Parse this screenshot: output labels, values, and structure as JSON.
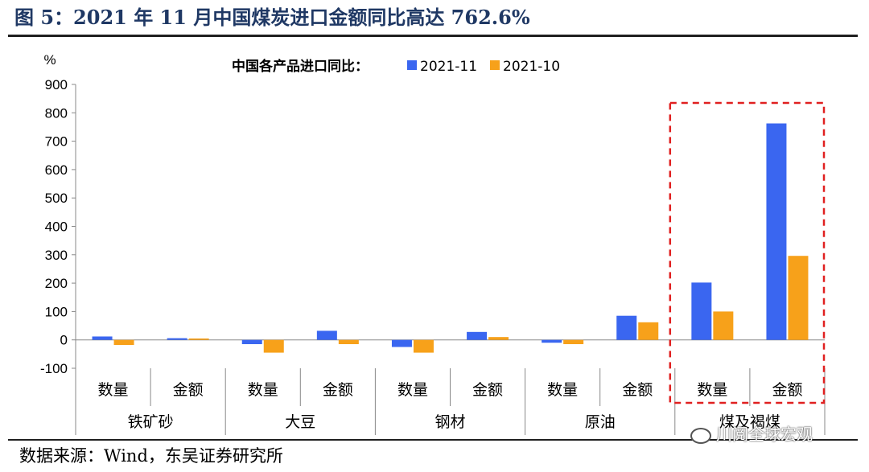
{
  "header": {
    "title": "图 5：2021 年 11 月中国煤炭进口金额同比高达 762.6%"
  },
  "footer": {
    "source": "数据来源：Wind，东吴证券研究所",
    "watermark": "川阅全球宏观"
  },
  "colors": {
    "series_2021_11": "#3a66f0",
    "series_2021_10": "#f7a11a",
    "highlight_box": "#e02020",
    "title": "#1f3864"
  },
  "chart_data": {
    "type": "bar",
    "ylabel": "%",
    "ylim": [
      -100,
      900
    ],
    "yticks": [
      -100,
      0,
      100,
      200,
      300,
      400,
      500,
      600,
      700,
      800,
      900
    ],
    "legend_title": "中国各产品进口同比：",
    "legend_position": "top",
    "groups": [
      {
        "name": "铁矿砂",
        "subcategories": [
          "数量",
          "金额"
        ]
      },
      {
        "name": "大豆",
        "subcategories": [
          "数量",
          "金额"
        ]
      },
      {
        "name": "钢材",
        "subcategories": [
          "数量",
          "金额"
        ]
      },
      {
        "name": "原油",
        "subcategories": [
          "数量",
          "金额"
        ]
      },
      {
        "name": "煤及褐煤",
        "subcategories": [
          "数量",
          "金额"
        ]
      }
    ],
    "categories": [
      "铁矿砂-数量",
      "铁矿砂-金额",
      "大豆-数量",
      "大豆-金额",
      "钢材-数量",
      "钢材-金额",
      "原油-数量",
      "原油-金额",
      "煤及褐煤-数量",
      "煤及褐煤-金额"
    ],
    "series": [
      {
        "name": "2021-11",
        "values": [
          12,
          6,
          -15,
          32,
          -25,
          28,
          -10,
          85,
          202,
          762.6
        ]
      },
      {
        "name": "2021-10",
        "values": [
          -18,
          5,
          -45,
          -15,
          -45,
          10,
          -15,
          62,
          100,
          296
        ]
      }
    ],
    "highlight_group": "煤及褐煤"
  }
}
